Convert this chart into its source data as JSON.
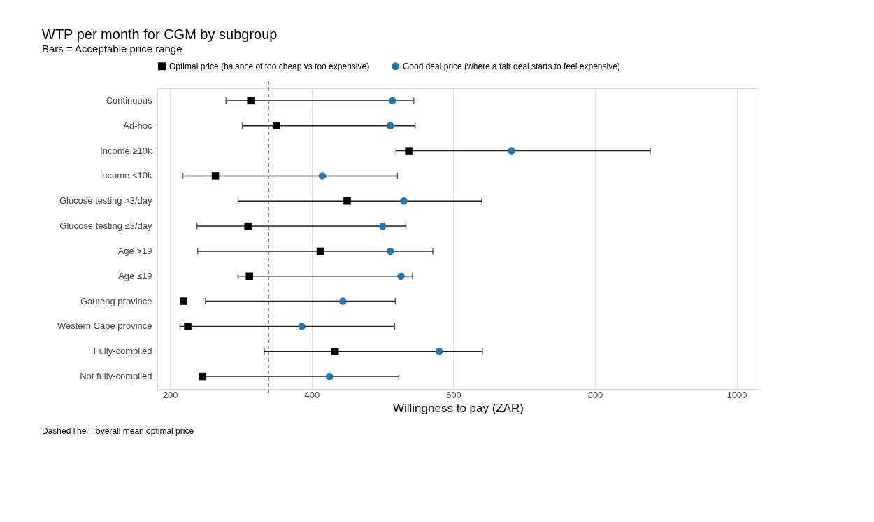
{
  "chart_data": {
    "type": "scatter",
    "orientation": "horizontal",
    "title": "WTP per month for CGM by subgroup",
    "subtitle": "Bars = Acceptable price range",
    "xlabel": "Willingness to pay (ZAR)",
    "categories": [
      "Continuous",
      "Ad-hoc",
      "Income ≥10k",
      "Income <10k",
      "Glucose testing >3/day",
      "Glucose testing ≤3/day",
      "Age >19",
      "Age ≤19",
      "Gauteng province",
      "Western Cape province",
      "Fully-complied",
      "Not fully-complied"
    ],
    "series": [
      {
        "name": "Optimal price (balance of too cheap vs too expensive)",
        "color": "#000000",
        "marker": "square",
        "values": [
          314,
          350,
          537,
          264,
          450,
          310,
          412,
          312,
          219,
          225,
          433,
          246
        ],
        "errors": [
          [
            279,
            544
          ],
          [
            302,
            546
          ],
          [
            519,
            878
          ],
          [
            218,
            521
          ],
          [
            296,
            640
          ],
          [
            238,
            533
          ],
          [
            239,
            571
          ],
          [
            296,
            542
          ],
          [
            250,
            518
          ],
          [
            214,
            517
          ],
          [
            333,
            641
          ],
          [
            242,
            523
          ]
        ]
      },
      {
        "name": "Good deal price (where a fair deal starts to feel expensive)",
        "color": "#1f77b4",
        "marker": "circle",
        "values": [
          514,
          511,
          682,
          415,
          530,
          500,
          511,
          526,
          444,
          386,
          580,
          425
        ]
      }
    ],
    "xlim": [
      182,
      1031
    ],
    "xticks": [
      200,
      400,
      600,
      800,
      1000
    ],
    "grid": "x",
    "legend": "top",
    "ref_lines": [
      {
        "axis": "x",
        "value": 339,
        "line_style": "dashed",
        "color": "#555555"
      }
    ],
    "annotations": [
      "Dashed line = overall mean optimal price"
    ]
  }
}
